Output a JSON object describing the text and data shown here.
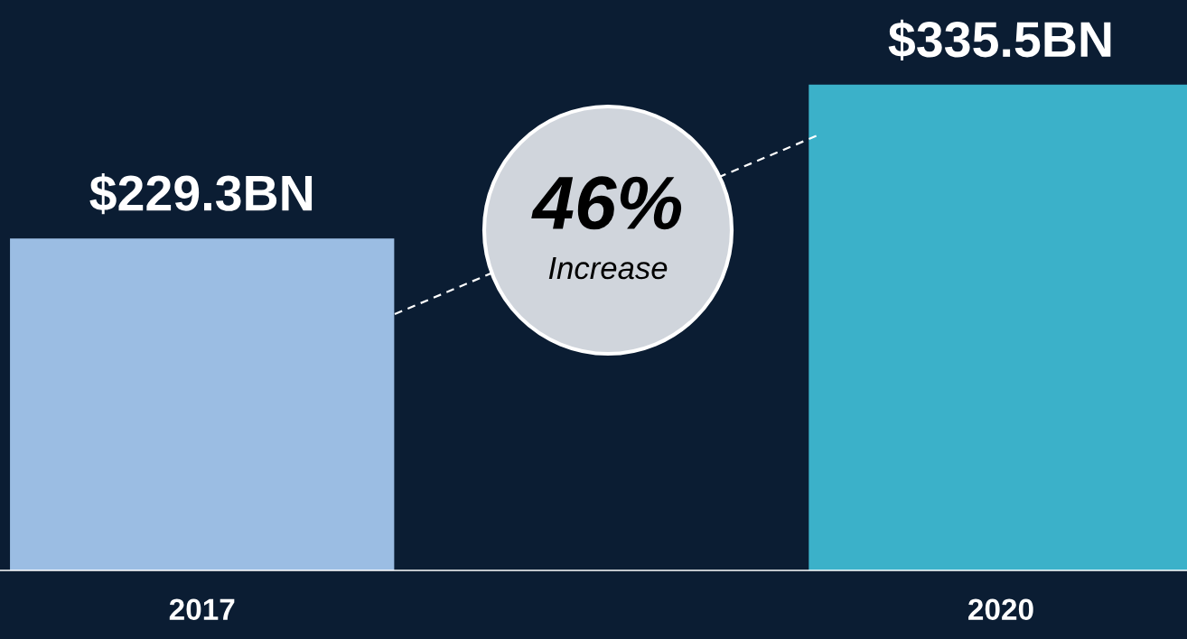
{
  "chart_data": {
    "type": "bar",
    "categories": [
      "2017",
      "2020"
    ],
    "values": [
      229.3,
      335.5
    ],
    "colors": [
      "#9bbde3",
      "#3bb1c9"
    ],
    "value_labels": [
      "$229.3BN",
      "$335.5BN"
    ],
    "ylim": [
      0,
      394
    ],
    "grid": false,
    "legend": false,
    "tick_labels": "x",
    "annotations": [
      "46%",
      "Increase"
    ]
  }
}
